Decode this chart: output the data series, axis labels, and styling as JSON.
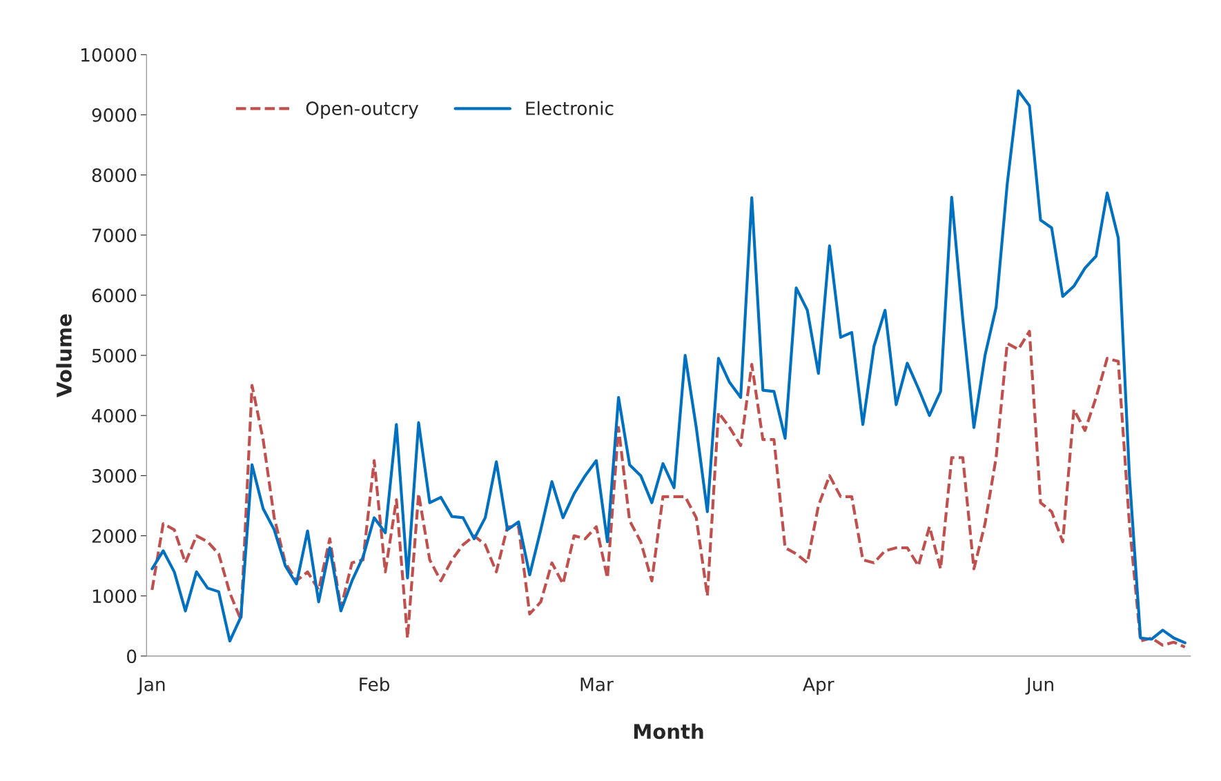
{
  "chart_data": {
    "type": "line",
    "xlabel": "Month",
    "ylabel": "Volume",
    "categories": [
      "Jan",
      null,
      null,
      null,
      null,
      null,
      null,
      null,
      null,
      null,
      null,
      null,
      null,
      null,
      null,
      null,
      null,
      null,
      null,
      null,
      "Feb",
      null,
      null,
      null,
      null,
      null,
      null,
      null,
      null,
      null,
      null,
      null,
      null,
      null,
      null,
      null,
      null,
      null,
      null,
      null,
      "Mar",
      null,
      null,
      null,
      null,
      null,
      null,
      null,
      null,
      null,
      null,
      null,
      null,
      null,
      null,
      null,
      null,
      null,
      null,
      null,
      "Apr",
      null,
      null,
      null,
      null,
      null,
      null,
      null,
      null,
      null,
      null,
      null,
      null,
      null,
      null,
      null,
      null,
      null,
      null,
      null,
      "Jun",
      null,
      null,
      null,
      null,
      null,
      null,
      null,
      null,
      null,
      null,
      null,
      null,
      null
    ],
    "series": [
      {
        "name": "Open-outcry",
        "color": "#c0504d",
        "line_style": "dashed",
        "values": [
          1100,
          2200,
          2100,
          1550,
          2000,
          1900,
          1700,
          1050,
          600,
          4500,
          3600,
          2300,
          1550,
          1250,
          1400,
          1100,
          1950,
          800,
          1550,
          1600,
          3250,
          1400,
          2600,
          300,
          2700,
          1600,
          1250,
          1600,
          1850,
          2000,
          1850,
          1400,
          2150,
          2150,
          700,
          900,
          1550,
          1200,
          2000,
          1950,
          2150,
          1300,
          3800,
          2250,
          1900,
          1250,
          2650,
          2650,
          2650,
          2300,
          1000,
          4050,
          3800,
          3500,
          4850,
          3600,
          3600,
          1800,
          1700,
          1550,
          2500,
          3000,
          2650,
          2650,
          1600,
          1550,
          1750,
          1800,
          1800,
          1500,
          2150,
          1450,
          3300,
          3300,
          1450,
          2200,
          3300,
          5200,
          5100,
          5400,
          2550,
          2400,
          1900,
          4100,
          3750,
          4300,
          4950,
          4900,
          2200,
          250,
          300,
          180,
          230,
          150
        ]
      },
      {
        "name": "Electronic",
        "color": "#0070c0",
        "line_style": "solid",
        "values": [
          1450,
          1750,
          1400,
          750,
          1400,
          1130,
          1070,
          250,
          650,
          3180,
          2450,
          2100,
          1500,
          1200,
          2080,
          900,
          1800,
          750,
          1250,
          1650,
          2300,
          2050,
          3850,
          1300,
          3880,
          2550,
          2640,
          2320,
          2300,
          1950,
          2300,
          3230,
          2100,
          2230,
          1350,
          2100,
          2900,
          2300,
          2700,
          3000,
          3250,
          1900,
          4300,
          3180,
          3000,
          2550,
          3200,
          2800,
          5000,
          3800,
          2400,
          4950,
          4550,
          4300,
          7620,
          4420,
          4400,
          3620,
          6120,
          5750,
          4700,
          6820,
          5300,
          5380,
          3850,
          5150,
          5750,
          4180,
          4870,
          4450,
          4000,
          4400,
          7630,
          5600,
          3800,
          5000,
          5800,
          7850,
          9400,
          9150,
          7250,
          7120,
          5980,
          6150,
          6450,
          6650,
          7700,
          6950,
          3000,
          300,
          280,
          430,
          300,
          220
        ]
      }
    ],
    "ylim": [
      0,
      10000
    ],
    "yticks": [
      0,
      1000,
      2000,
      3000,
      4000,
      5000,
      6000,
      7000,
      8000,
      9000,
      10000
    ],
    "grid": false,
    "legend": "top left"
  }
}
